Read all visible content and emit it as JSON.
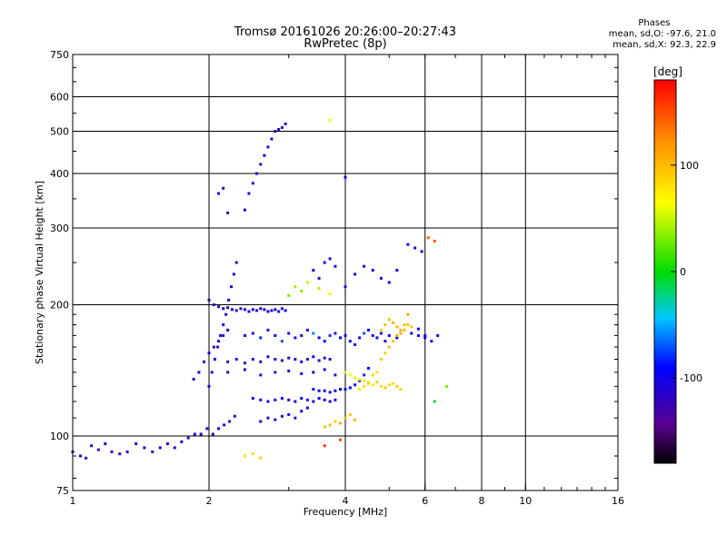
{
  "header": {
    "title": "Tromsø 20161026 20:26:00–20:27:43",
    "subtitle": "RwPretec (8p)"
  },
  "phase_stats": {
    "heading": "Phases",
    "line_o": "mean, sd,O: -97.6, 21.0",
    "line_x": "mean, sd,X:  92.3, 22.9"
  },
  "colorbar": {
    "unit": "[deg]",
    "range": [
      -180,
      180
    ],
    "ticks": [
      100,
      0,
      -100
    ],
    "tick_labels": [
      "100",
      "0",
      "-100"
    ]
  },
  "chart_data": {
    "type": "scatter",
    "xlabel": "Frequency [MHz]",
    "ylabel": "Stationary phase Virtual Height [km]",
    "xscale": "log",
    "yscale": "log",
    "xlim": [
      1,
      16
    ],
    "ylim": [
      75,
      750
    ],
    "x_ticks": [
      1,
      2,
      4,
      6,
      8,
      10,
      16
    ],
    "x_tick_labels": [
      "1",
      "2",
      "4",
      "6",
      "8",
      "10",
      "16"
    ],
    "x_grid": [
      2,
      4,
      6,
      8,
      10
    ],
    "y_ticks": [
      75,
      100,
      200,
      300,
      400,
      500,
      600,
      750
    ],
    "y_tick_labels": [
      "75",
      "100",
      "200",
      "300",
      "400",
      "500",
      "600",
      "750"
    ],
    "y_grid": [
      100,
      200,
      300,
      400,
      500,
      600
    ],
    "grid": true,
    "color_variable": "phase [deg]",
    "series": [
      {
        "x": [
          1.0,
          1.04,
          1.07,
          1.1,
          1.14,
          1.18,
          1.22,
          1.27,
          1.32,
          1.38,
          1.44,
          1.5,
          1.56,
          1.62,
          1.68,
          1.74,
          1.8,
          1.86,
          1.92,
          1.98,
          2.04,
          2.1,
          2.16,
          2.22,
          2.28
        ],
        "y": [
          92,
          90,
          89,
          95,
          93,
          96,
          92,
          91,
          92,
          96,
          94,
          92,
          94,
          96,
          94,
          97,
          99,
          101,
          101,
          104,
          101,
          104,
          106,
          108,
          111
        ],
        "c": [
          -115,
          -120,
          -110,
          -118,
          -122,
          -108,
          -115,
          -125,
          -112,
          -118,
          -110,
          -120,
          -105,
          -115,
          -122,
          -110,
          -118,
          -108,
          -100,
          -115,
          -122,
          -95,
          -112,
          -104,
          -118
        ]
      },
      {
        "x": [
          2.0,
          2.05,
          2.1,
          2.15,
          2.2,
          2.25,
          2.3,
          2.35,
          2.4,
          2.45,
          2.5,
          2.55,
          2.6,
          2.65,
          2.7,
          2.75,
          2.8,
          2.85,
          2.9,
          2.95
        ],
        "y": [
          205,
          200,
          198,
          196,
          197,
          195,
          194,
          196,
          195,
          193,
          195,
          194,
          196,
          195,
          193,
          194,
          195,
          193,
          196,
          194
        ],
        "c": [
          -112,
          -118,
          -105,
          -120,
          -110,
          -100,
          -115,
          -108,
          -95,
          -112,
          -104,
          -118,
          -100,
          -110,
          -92,
          -115,
          -105,
          -98,
          -110,
          -102
        ]
      },
      {
        "x": [
          2.0,
          2.03,
          2.06,
          2.09,
          2.12,
          2.15,
          2.18,
          2.21,
          2.24,
          2.27,
          2.3
        ],
        "y": [
          130,
          140,
          150,
          160,
          170,
          180,
          190,
          205,
          220,
          235,
          250
        ],
        "c": [
          -110,
          -115,
          -100,
          -120,
          -108,
          -95,
          -115,
          -105,
          -112,
          -100,
          -118
        ]
      },
      {
        "x": [
          1.85,
          1.9,
          1.95,
          2.0,
          2.05,
          2.1,
          2.15,
          2.2
        ],
        "y": [
          135,
          140,
          148,
          155,
          160,
          165,
          170,
          175
        ],
        "c": [
          -118,
          -110,
          -115,
          -105,
          -120,
          -108,
          -112,
          -100
        ]
      },
      {
        "x": [
          2.4,
          2.5,
          2.6,
          2.7,
          2.8,
          2.9,
          3.0,
          3.1,
          3.2,
          3.3,
          3.4,
          3.5,
          3.6,
          3.7,
          3.8,
          3.9,
          4.0,
          4.1,
          4.2,
          4.3,
          4.4,
          4.5,
          4.6,
          4.7,
          4.8,
          4.9,
          5.0,
          5.2,
          5.4,
          5.6,
          5.8,
          6.0,
          6.2,
          6.4
        ],
        "y": [
          170,
          172,
          168,
          175,
          170,
          165,
          172,
          168,
          170,
          175,
          172,
          168,
          165,
          170,
          172,
          168,
          170,
          165,
          162,
          168,
          172,
          175,
          170,
          168,
          172,
          165,
          170,
          168,
          175,
          172,
          170,
          168,
          165,
          170
        ],
        "c": [
          -100,
          -90,
          -80,
          -110,
          -95,
          -70,
          -105,
          -85,
          -115,
          -95,
          -60,
          -110,
          -100,
          -80,
          -120,
          -95,
          -105,
          -85,
          -110,
          -100,
          -70,
          -95,
          -110,
          -100,
          -85,
          -115,
          -100,
          -95,
          -105,
          -110,
          -90,
          -100,
          -115,
          -105
        ]
      },
      {
        "x": [
          2.2,
          2.3,
          2.4,
          2.5,
          2.6,
          2.7,
          2.8,
          2.9,
          3.0,
          3.1,
          3.2,
          3.3,
          3.4,
          3.5,
          3.6,
          3.7
        ],
        "y": [
          148,
          150,
          147,
          150,
          148,
          152,
          150,
          149,
          151,
          150,
          148,
          150,
          152,
          149,
          151,
          150
        ],
        "c": [
          -115,
          -110,
          -120,
          -105,
          -112,
          -118,
          -108,
          -115,
          -102,
          -120,
          -110,
          -114,
          -106,
          -118,
          -112,
          -108
        ]
      },
      {
        "x": [
          2.2,
          2.4,
          2.6,
          2.8,
          3.0,
          3.2,
          3.4,
          3.6,
          3.8,
          4.0
        ],
        "y": [
          140,
          142,
          138,
          140,
          141,
          139,
          140,
          142,
          138,
          140
        ],
        "c": [
          -110,
          -115,
          -105,
          -118,
          -112,
          -108,
          -115,
          -102,
          -120,
          -110
        ]
      },
      {
        "x": [
          3.4,
          3.5,
          3.6,
          3.7,
          3.8,
          3.9,
          4.0,
          4.1,
          4.2,
          4.3,
          4.4,
          4.5
        ],
        "y": [
          128,
          127,
          127,
          126,
          127,
          128,
          128,
          129,
          131,
          134,
          138,
          143
        ],
        "c": [
          -95,
          -100,
          -92,
          -98,
          -90,
          -96,
          -88,
          -92,
          -85,
          -95,
          -80,
          -90
        ]
      },
      {
        "x": [
          2.5,
          2.6,
          2.7,
          2.8,
          2.9,
          3.0,
          3.1,
          3.2,
          3.3,
          3.4,
          3.5,
          3.6,
          3.7,
          3.8
        ],
        "y": [
          122,
          121,
          120,
          121,
          122,
          121,
          120,
          122,
          121,
          120,
          122,
          121,
          120,
          121
        ],
        "c": [
          -105,
          -100,
          -110,
          -95,
          -108,
          -102,
          -112,
          -98,
          -106,
          -104,
          -100,
          -110,
          -96,
          -104
        ]
      },
      {
        "x": [
          2.6,
          2.7,
          2.8,
          2.9,
          3.0,
          3.1,
          3.2,
          3.3
        ],
        "y": [
          108,
          110,
          109,
          111,
          112,
          110,
          114,
          116
        ],
        "c": [
          -110,
          -115,
          -105,
          -112,
          -108,
          -118,
          -100,
          -110
        ]
      },
      {
        "x": [
          4.0,
          4.1,
          4.2,
          4.3,
          4.4,
          4.5,
          4.6,
          4.7,
          4.8,
          4.9,
          5.0,
          5.1,
          5.2,
          5.3,
          5.4,
          5.5
        ],
        "y": [
          140,
          138,
          136,
          135,
          134,
          133,
          138,
          140,
          150,
          155,
          160,
          165,
          170,
          175,
          180,
          190
        ],
        "c": [
          60,
          70,
          55,
          65,
          75,
          60,
          85,
          80,
          95,
          90,
          100,
          95,
          110,
          105,
          100,
          110
        ]
      },
      {
        "x": [
          3.6,
          3.7,
          3.8,
          3.9,
          4.0,
          4.1,
          4.2
        ],
        "y": [
          105,
          106,
          108,
          107,
          110,
          112,
          109
        ],
        "c": [
          95,
          100,
          90,
          105,
          98,
          92,
          102
        ]
      },
      {
        "x": [
          4.3,
          4.4,
          4.5,
          4.6,
          4.7,
          4.8,
          4.9,
          5.0,
          5.1,
          5.2,
          5.3
        ],
        "y": [
          128,
          130,
          132,
          131,
          133,
          130,
          129,
          131,
          132,
          130,
          128
        ],
        "c": [
          80,
          85,
          90,
          75,
          88,
          82,
          95,
          86,
          78,
          90,
          84
        ]
      },
      {
        "x": [
          4.8,
          4.9,
          5.0,
          5.1,
          5.2,
          5.3,
          5.4,
          5.5,
          5.6,
          5.8,
          6.0
        ],
        "y": [
          175,
          180,
          185,
          182,
          178,
          172,
          175,
          180,
          178,
          176,
          170
        ],
        "c": [
          90,
          100,
          95,
          105,
          98,
          110,
          92,
          100,
          96,
          -90,
          -100
        ]
      },
      {
        "x": [
          2.4,
          2.45,
          2.5,
          2.55,
          2.6,
          2.65,
          2.7,
          2.75,
          2.8,
          2.85,
          2.9,
          2.95
        ],
        "y": [
          330,
          360,
          380,
          400,
          420,
          440,
          460,
          480,
          500,
          505,
          510,
          520
        ],
        "c": [
          -110,
          -100,
          -115,
          -105,
          -120,
          -108,
          -112,
          -100,
          -118,
          -105,
          -110,
          -95
        ]
      },
      {
        "x": [
          2.1,
          2.15,
          2.2
        ],
        "y": [
          360,
          370,
          325
        ],
        "c": [
          -115,
          -108,
          -120
        ]
      },
      {
        "x": [
          3.4,
          3.5,
          3.6,
          3.7,
          3.8,
          4.0,
          4.2,
          4.4,
          4.6,
          4.8,
          5.0,
          5.2
        ],
        "y": [
          240,
          230,
          250,
          255,
          245,
          220,
          235,
          245,
          240,
          230,
          225,
          240
        ],
        "c": [
          -105,
          -110,
          -100,
          -115,
          -108,
          -112,
          -100,
          -118,
          -105,
          -110,
          -95,
          -108
        ]
      },
      {
        "x": [
          3.0,
          3.1,
          3.2,
          3.3,
          3.5,
          3.7
        ],
        "y": [
          210,
          220,
          215,
          225,
          218,
          212
        ],
        "c": [
          30,
          40,
          35,
          50,
          45,
          60
        ]
      },
      {
        "x": [
          5.5,
          5.7,
          5.9,
          6.1,
          6.3
        ],
        "y": [
          275,
          270,
          265,
          285,
          280
        ],
        "c": [
          -110,
          -120,
          -105,
          140,
          145
        ]
      },
      {
        "x": [
          2.4,
          2.5,
          2.6
        ],
        "y": [
          90,
          91,
          89
        ],
        "c": [
          80,
          85,
          90
        ]
      },
      {
        "x": [
          3.6,
          3.9,
          6.3,
          6.7,
          4.0,
          3.7
        ],
        "y": [
          95,
          98,
          120,
          130,
          392,
          530
        ],
        "c": [
          160,
          150,
          -10,
          30,
          -100,
          60
        ]
      }
    ]
  }
}
